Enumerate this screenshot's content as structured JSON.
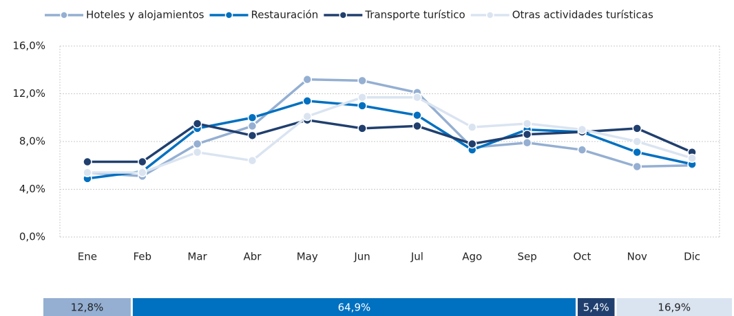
{
  "chart_data": [
    {
      "type": "line",
      "categories": [
        "Ene",
        "Feb",
        "Mar",
        "Abr",
        "May",
        "Jun",
        "Jul",
        "Ago",
        "Sep",
        "Oct",
        "Nov",
        "Dic"
      ],
      "series": [
        {
          "name": "Hoteles y alojamientos",
          "color": "#94afd2",
          "values": [
            5.4,
            5.1,
            7.8,
            9.3,
            13.2,
            13.1,
            12.1,
            7.5,
            7.9,
            7.3,
            5.9,
            6.0
          ]
        },
        {
          "name": "Restauración",
          "color": "#0070c0",
          "values": [
            4.9,
            5.5,
            9.1,
            10.0,
            11.4,
            11.0,
            10.2,
            7.3,
            9.0,
            8.8,
            7.1,
            6.1
          ]
        },
        {
          "name": "Transporte turístico",
          "color": "#203f6e",
          "values": [
            6.3,
            6.3,
            9.5,
            8.5,
            9.8,
            9.1,
            9.3,
            7.8,
            8.6,
            8.8,
            9.1,
            7.1
          ]
        },
        {
          "name": "Otras actividades turísticas",
          "color": "#dae4f1",
          "values": [
            5.4,
            5.4,
            7.1,
            6.4,
            10.1,
            11.7,
            11.7,
            9.2,
            9.5,
            9.0,
            8.0,
            6.6
          ]
        }
      ],
      "ylim": [
        0,
        16
      ],
      "yticks": [
        {
          "value": 0,
          "label": "0,0%"
        },
        {
          "value": 4,
          "label": "4,0%"
        },
        {
          "value": 8,
          "label": "8,0%"
        },
        {
          "value": 12,
          "label": "12,0%"
        },
        {
          "value": 16,
          "label": "16,0%"
        }
      ],
      "grid": true,
      "legend": "top"
    },
    {
      "type": "share_bar",
      "values": [
        12.8,
        64.9,
        5.4,
        16.9
      ],
      "value_labels": [
        "12,8%",
        "64,9%",
        "5,4%",
        "16,9%"
      ],
      "colors": [
        "#94afd2",
        "#0070c0",
        "#203f6e",
        "#dae4f1"
      ]
    }
  ]
}
